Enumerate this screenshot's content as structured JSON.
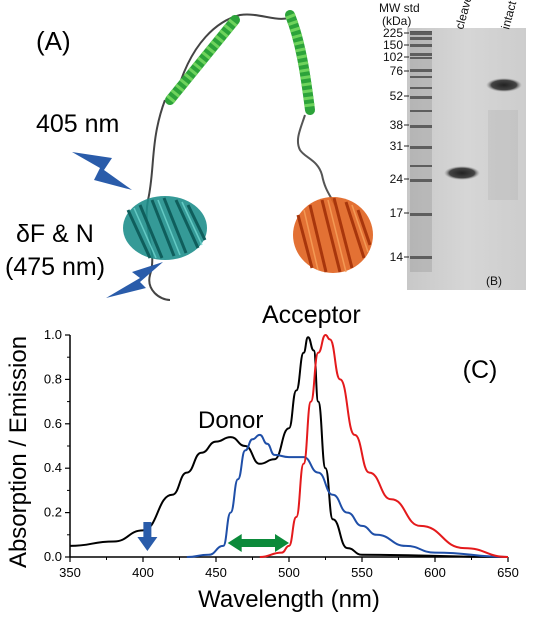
{
  "panel_a": {
    "label": "(A)",
    "excitation": "405 nm",
    "readout_line1": "δF & N",
    "readout_line2": "(475 nm)"
  },
  "panel_b": {
    "label": "(B)",
    "std_header_line1": "MW std",
    "std_header_line2": "(kDa)",
    "lane_cleaved": "cleaved",
    "lane_intact": "intact",
    "markers": [
      "225",
      "150",
      "102",
      "76",
      "52",
      "38",
      "31",
      "24",
      "17",
      "14"
    ]
  },
  "panel_c": {
    "label": "(C)",
    "donor_label": "Donor",
    "acceptor_label": "Acceptor"
  },
  "chart_data": {
    "type": "line",
    "xlabel": "Wavelength (nm)",
    "ylabel": "Absorption / Emission",
    "xlim": [
      350,
      650
    ],
    "ylim": [
      0,
      1.0
    ],
    "xticks": [
      "350",
      "400",
      "450",
      "500",
      "550",
      "600",
      "650"
    ],
    "yticks": [
      "0.0",
      "0.2",
      "0.4",
      "0.6",
      "0.8",
      "1.0"
    ],
    "series": [
      {
        "color": "#000000",
        "x": [
          350,
          380,
          400,
          420,
          430,
          440,
          450,
          460,
          470,
          480,
          490,
          500,
          505,
          510,
          513,
          517,
          520,
          525,
          530,
          540,
          550,
          650
        ],
        "y": [
          0.05,
          0.07,
          0.12,
          0.28,
          0.38,
          0.47,
          0.52,
          0.54,
          0.5,
          0.42,
          0.44,
          0.58,
          0.75,
          0.92,
          0.99,
          0.93,
          0.7,
          0.4,
          0.17,
          0.04,
          0.01,
          0.0
        ]
      },
      {
        "color": "#1f4fa8",
        "x": [
          430,
          445,
          455,
          460,
          465,
          470,
          475,
          480,
          485,
          490,
          500,
          510,
          520,
          530,
          540,
          550,
          560,
          580,
          600,
          650
        ],
        "y": [
          0.0,
          0.01,
          0.05,
          0.2,
          0.35,
          0.48,
          0.53,
          0.55,
          0.51,
          0.46,
          0.45,
          0.45,
          0.38,
          0.28,
          0.2,
          0.14,
          0.1,
          0.05,
          0.02,
          0.0
        ]
      },
      {
        "color": "#e41a1c",
        "x": [
          480,
          495,
          500,
          505,
          510,
          515,
          520,
          525,
          528,
          535,
          545,
          555,
          570,
          590,
          620,
          650
        ],
        "y": [
          0.0,
          0.02,
          0.05,
          0.18,
          0.42,
          0.7,
          0.92,
          1.0,
          0.98,
          0.8,
          0.55,
          0.38,
          0.26,
          0.14,
          0.04,
          0.0
        ]
      }
    ],
    "annotations": [
      {
        "type": "arrow-down",
        "x": 403,
        "color": "#2a5caa"
      },
      {
        "type": "double-arrow",
        "x_start": 458,
        "x_end": 500,
        "color": "#0b8a3a"
      }
    ]
  }
}
